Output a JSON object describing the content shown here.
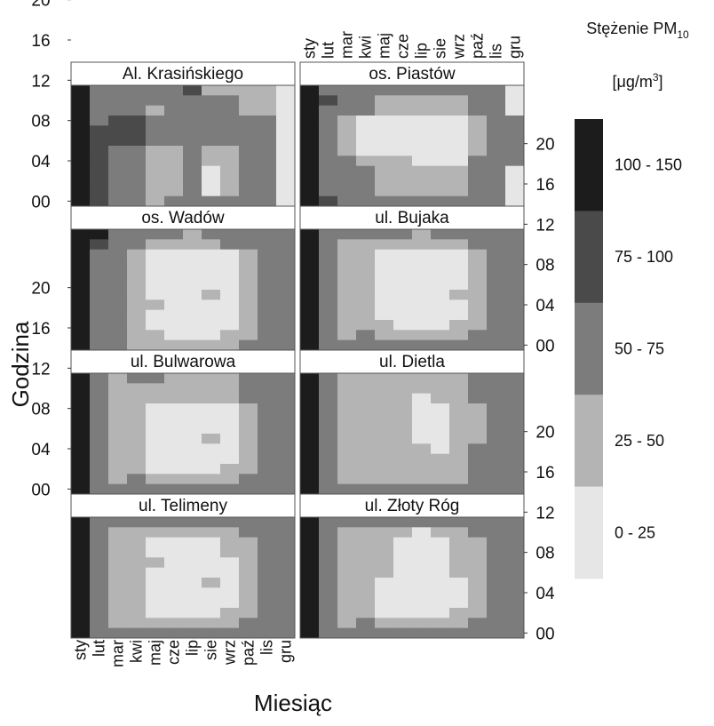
{
  "chart_data": {
    "type": "heatmap",
    "xlabel": "Miesiąc",
    "ylabel": "Godzina",
    "months": [
      "sty",
      "lut",
      "mar",
      "kwi",
      "maj",
      "cze",
      "lip",
      "sie",
      "wrz",
      "paź",
      "lis",
      "gru"
    ],
    "hour_ticks": [
      "00",
      "04",
      "08",
      "12",
      "16",
      "20"
    ],
    "legend": {
      "title": "Stężenie PM",
      "title_sub": "10",
      "unit_prefix": "[μg/m",
      "unit_sup": "3",
      "unit_suffix": "]",
      "classes": [
        {
          "label": "100 - 150",
          "color": "#1c1c1c"
        },
        {
          "label": "75 - 100",
          "color": "#4a4a4a"
        },
        {
          "label": "50 - 75",
          "color": "#7c7c7c"
        },
        {
          "label": "25 - 50",
          "color": "#b4b4b4"
        },
        {
          "label": "0 - 25",
          "color": "#e6e6e6"
        }
      ]
    },
    "panels": [
      {
        "name": "Al. Krasińskiego",
        "rows": [
          "022222133334",
          "022222222334",
          "022232222334",
          "021122222224",
          "011122222224",
          "011122222224",
          "012233233224",
          "012233233224",
          "012233243224",
          "012233243224",
          "012233243224",
          "012232222224"
        ]
      },
      {
        "name": "os. Piastów",
        "rows": [
          "022222222224",
          "012233333224",
          "022233333224",
          "023444444322",
          "023444444322",
          "023444444322",
          "023444444322",
          "022333444222",
          "022233333224",
          "022233333224",
          "022233333224",
          "012222222224"
        ]
      },
      {
        "name": "os. Wadów",
        "rows": [
          "002222322222",
          "012233332222",
          "022344444322",
          "022344444322",
          "022344444322",
          "022344444322",
          "022344434322",
          "022334444322",
          "022344444322",
          "022344444322",
          "022334443322",
          "022333333222"
        ]
      },
      {
        "name": "ul. Bujaka",
        "rows": [
          "022222322222",
          "023333333222",
          "023344444322",
          "023344444322",
          "023344444322",
          "023344444322",
          "023344443322",
          "023344444322",
          "023344444322",
          "023334443322",
          "023233333222",
          "022222222222"
        ]
      },
      {
        "name": "ul. Bulwarowa",
        "rows": [
          "023223333222",
          "023333333222",
          "023333333222",
          "023344444322",
          "023344444322",
          "023344444322",
          "023344434322",
          "023344444322",
          "023344444322",
          "023344443322",
          "023233333222",
          "022222222222"
        ]
      },
      {
        "name": "ul. Dietla",
        "rows": [
          "023333333222",
          "023333333222",
          "023333433222",
          "023333443322",
          "023333443322",
          "023333443322",
          "023333443322",
          "023333343222",
          "023333333222",
          "023333333222",
          "023333333222",
          "022222222222"
        ]
      },
      {
        "name": "ul. Telimeny",
        "rows": [
          "022222222222",
          "023333333222",
          "023344443322",
          "023344443322",
          "023334444322",
          "023344444322",
          "023344434322",
          "023344444322",
          "023344444322",
          "023344443322",
          "023333333222",
          "022222222222"
        ]
      },
      {
        "name": "ul. Złoty Róg",
        "rows": [
          "022222222222",
          "023333433222",
          "023334443322",
          "023334443322",
          "023334443322",
          "023334443322",
          "023344444322",
          "023344444322",
          "023344444322",
          "023344443322",
          "023233333222",
          "022222222222"
        ]
      }
    ]
  }
}
